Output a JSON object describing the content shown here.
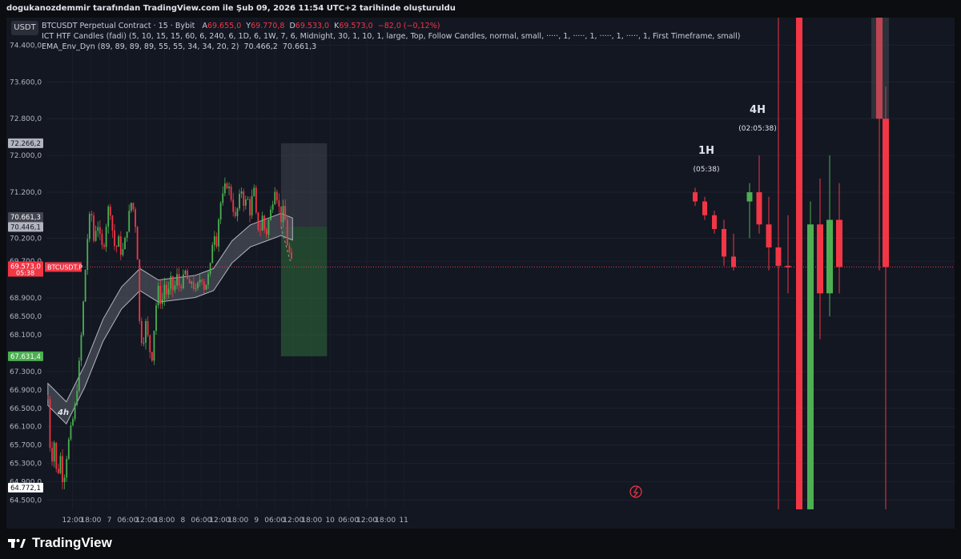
{
  "header": {
    "attribution": "dogukanozdemmir tarafından TradingView.com ile Şub 09, 2026 11:54 UTC+2 tarihinde oluşturuldu"
  },
  "legend": {
    "symbol_button": "USDT",
    "title": "BTCUSDT Perpetual Contract · 15 · Bybit",
    "open_label": "A",
    "open": "69.655,0",
    "high_label": "Y",
    "high": "69.770,8",
    "low_label": "D",
    "low": "69.533,0",
    "close_label": "K",
    "close": "69.573,0",
    "change": "−82,0 (−0,12%)",
    "indicator1": "ICT HTF Candles (fadi) (5, 10, 15, 15, 60, 6, 240, 6, 1D, 6, 1W, 7, 6, Midnight, 30, 1, 10, 1, large, Top, Follow Candles, normal, small, ·····, 1, ·····, 1, ·····, 1, ·····, 1, First Timeframe, small)",
    "indicator2": "EMA_Env_Dyn (89, 89, 89, 89, 55, 55, 34, 34, 20, 2)",
    "indicator2_v1": "70.466,2",
    "indicator2_v2": "70.661,3"
  },
  "annotations": {
    "h1_label": "1H",
    "h1_timer": "(05:38)",
    "h4_label": "4H",
    "h4_timer": "(02:05:38)",
    "small_4h": "4h",
    "symbol_tag": "BTCUSDT.P"
  },
  "price_tags": {
    "t1": "72.266,2",
    "t2": "70.661,3",
    "t3": "70.466,2",
    "t4": "70.446,1",
    "current": "69.573,0",
    "countdown": "05:38",
    "t5": "67.631,4",
    "t6": "64.772,1"
  },
  "colors": {
    "up": "#4caf50",
    "down": "#f23645",
    "background": "#131722",
    "envelope": "#9598a1",
    "risk_box": "#4a4d57",
    "reward_box": "#2f6b3a"
  },
  "chart_data": {
    "type": "candlestick",
    "symbol": "BTCUSDT Perpetual Contract",
    "timeframe": "15",
    "exchange": "Bybit",
    "y_axis": {
      "range": [
        64300,
        75000
      ],
      "tick_labels": [
        "74.400,0",
        "73.600,0",
        "72.800,0",
        "72.000,0",
        "71.200,0",
        "70.200,0",
        "69.700,0",
        "68.900,0",
        "68.500,0",
        "68.100,0",
        "67.300,0",
        "66.900,0",
        "66.500,0",
        "66.100,0",
        "65.700,0",
        "65.300,0",
        "64.900,0",
        "64.500,0"
      ]
    },
    "x_axis": {
      "tick_labels": [
        "12:00",
        "18:00",
        "7",
        "06:00",
        "12:00",
        "18:00",
        "8",
        "06:00",
        "12:00",
        "18:00",
        "9",
        "06:00",
        "12:00",
        "18:00",
        "10",
        "06:00",
        "12:00",
        "18:00",
        "11"
      ]
    },
    "price_path": [
      {
        "t": "06 Feb 04:00",
        "p": 66700
      },
      {
        "t": "06 Feb 05:00",
        "p": 65200
      },
      {
        "t": "06 Feb 06:00",
        "p": 65800
      },
      {
        "t": "06 Feb 07:00",
        "p": 64900
      },
      {
        "t": "06 Feb 08:00",
        "p": 65500
      },
      {
        "t": "06 Feb 09:00",
        "p": 64800
      },
      {
        "t": "06 Feb 10:00",
        "p": 65400
      },
      {
        "t": "06 Feb 11:00",
        "p": 65900
      },
      {
        "t": "06 Feb 12:00",
        "p": 66200
      },
      {
        "t": "06 Feb 13:00",
        "p": 66600
      },
      {
        "t": "06 Feb 14:00",
        "p": 67300
      },
      {
        "t": "06 Feb 15:00",
        "p": 68200
      },
      {
        "t": "06 Feb 16:00",
        "p": 69300
      },
      {
        "t": "06 Feb 17:00",
        "p": 70300
      },
      {
        "t": "06 Feb 18:00",
        "p": 70900
      },
      {
        "t": "06 Feb 19:00",
        "p": 70100
      },
      {
        "t": "06 Feb 20:00",
        "p": 70600
      },
      {
        "t": "06 Feb 21:00",
        "p": 70200
      },
      {
        "t": "06 Feb 22:00",
        "p": 69900
      },
      {
        "t": "06 Feb 23:00",
        "p": 70500
      },
      {
        "t": "07 Feb 00:00",
        "p": 71000
      },
      {
        "t": "07 Feb 01:00",
        "p": 70400
      },
      {
        "t": "07 Feb 02:00",
        "p": 69900
      },
      {
        "t": "07 Feb 03:00",
        "p": 70200
      },
      {
        "t": "07 Feb 04:00",
        "p": 69800
      },
      {
        "t": "07 Feb 05:00",
        "p": 70100
      },
      {
        "t": "07 Feb 06:00",
        "p": 70500
      },
      {
        "t": "07 Feb 07:00",
        "p": 71000
      },
      {
        "t": "07 Feb 08:00",
        "p": 70800
      },
      {
        "t": "07 Feb 09:00",
        "p": 70200
      },
      {
        "t": "07 Feb 10:00",
        "p": 68100
      },
      {
        "t": "07 Feb 11:00",
        "p": 67900
      },
      {
        "t": "07 Feb 12:00",
        "p": 68400
      },
      {
        "t": "07 Feb 13:00",
        "p": 67800
      },
      {
        "t": "07 Feb 14:00",
        "p": 67600
      },
      {
        "t": "07 Feb 15:00",
        "p": 68600
      },
      {
        "t": "07 Feb 16:00",
        "p": 69100
      },
      {
        "t": "07 Feb 17:00",
        "p": 68700
      },
      {
        "t": "07 Feb 18:00",
        "p": 69200
      },
      {
        "t": "07 Feb 19:00",
        "p": 68900
      },
      {
        "t": "07 Feb 20:00",
        "p": 69300
      },
      {
        "t": "07 Feb 21:00",
        "p": 69000
      },
      {
        "t": "07 Feb 22:00",
        "p": 69400
      },
      {
        "t": "07 Feb 23:00",
        "p": 69100
      },
      {
        "t": "08 Feb 00:00",
        "p": 69300
      },
      {
        "t": "08 Feb 01:00",
        "p": 69500
      },
      {
        "t": "08 Feb 02:00",
        "p": 69100
      },
      {
        "t": "08 Feb 03:00",
        "p": 69300
      },
      {
        "t": "08 Feb 04:00",
        "p": 69000
      },
      {
        "t": "08 Feb 05:00",
        "p": 69200
      },
      {
        "t": "08 Feb 06:00",
        "p": 69400
      },
      {
        "t": "08 Feb 07:00",
        "p": 69100
      },
      {
        "t": "08 Feb 08:00",
        "p": 69300
      },
      {
        "t": "08 Feb 09:00",
        "p": 69600
      },
      {
        "t": "08 Feb 10:00",
        "p": 70400
      },
      {
        "t": "08 Feb 11:00",
        "p": 70100
      },
      {
        "t": "08 Feb 12:00",
        "p": 70900
      },
      {
        "t": "08 Feb 13:00",
        "p": 71100
      },
      {
        "t": "08 Feb 14:00",
        "p": 71400
      },
      {
        "t": "08 Feb 15:00",
        "p": 71300
      },
      {
        "t": "08 Feb 16:00",
        "p": 71000
      },
      {
        "t": "08 Feb 17:00",
        "p": 70600
      },
      {
        "t": "08 Feb 18:00",
        "p": 70900
      },
      {
        "t": "08 Feb 19:00",
        "p": 71300
      },
      {
        "t": "08 Feb 20:00",
        "p": 70900
      },
      {
        "t": "08 Feb 21:00",
        "p": 71100
      },
      {
        "t": "08 Feb 22:00",
        "p": 70700
      },
      {
        "t": "08 Feb 23:00",
        "p": 71400
      },
      {
        "t": "09 Feb 00:00",
        "p": 70600
      },
      {
        "t": "09 Feb 01:00",
        "p": 70300
      },
      {
        "t": "09 Feb 02:00",
        "p": 70700
      },
      {
        "t": "09 Feb 03:00",
        "p": 70200
      },
      {
        "t": "09 Feb 04:00",
        "p": 70600
      },
      {
        "t": "09 Feb 05:00",
        "p": 70900
      },
      {
        "t": "09 Feb 06:00",
        "p": 71300
      },
      {
        "t": "09 Feb 07:00",
        "p": 71000
      },
      {
        "t": "09 Feb 08:00",
        "p": 70600
      },
      {
        "t": "09 Feb 09:00",
        "p": 70900
      },
      {
        "t": "09 Feb 10:00",
        "p": 70100
      },
      {
        "t": "09 Feb 11:00",
        "p": 69800
      },
      {
        "t": "09 Feb 11:45",
        "p": 69573
      }
    ],
    "envelope_center": [
      {
        "t": "06 Feb 04:00",
        "p": 66800
      },
      {
        "t": "06 Feb 10:00",
        "p": 66400
      },
      {
        "t": "06 Feb 16:00",
        "p": 67200
      },
      {
        "t": "06 Feb 22:00",
        "p": 68200
      },
      {
        "t": "07 Feb 04:00",
        "p": 68900
      },
      {
        "t": "07 Feb 10:00",
        "p": 69300
      },
      {
        "t": "07 Feb 16:00",
        "p": 69050
      },
      {
        "t": "07 Feb 22:00",
        "p": 69100
      },
      {
        "t": "08 Feb 04:00",
        "p": 69150
      },
      {
        "t": "08 Feb 10:00",
        "p": 69300
      },
      {
        "t": "08 Feb 16:00",
        "p": 69900
      },
      {
        "t": "08 Feb 22:00",
        "p": 70250
      },
      {
        "t": "09 Feb 04:00",
        "p": 70400
      },
      {
        "t": "09 Feb 08:00",
        "p": 70500
      },
      {
        "t": "09 Feb 11:45",
        "p": 70400
      }
    ],
    "envelope_width": 240,
    "position_tool": {
      "entry": 70450,
      "stop": 72266.2,
      "target": 67631.4
    },
    "htf_candles_1h": [
      {
        "o": 71200,
        "h": 71300,
        "l": 70900,
        "c": 71000
      },
      {
        "o": 71000,
        "h": 71100,
        "l": 70600,
        "c": 70700
      },
      {
        "o": 70700,
        "h": 70800,
        "l": 70300,
        "c": 70400
      },
      {
        "o": 70400,
        "h": 70600,
        "l": 69600,
        "c": 69800
      },
      {
        "o": 69800,
        "h": 70300,
        "l": 69500,
        "c": 69573
      }
    ],
    "htf_candles_4h": [
      {
        "o": 71000,
        "h": 71400,
        "l": 70200,
        "c": 71200
      },
      {
        "o": 71200,
        "h": 72000,
        "l": 70300,
        "c": 70500
      },
      {
        "o": 70500,
        "h": 71100,
        "l": 69500,
        "c": 70000
      },
      {
        "o": 70000,
        "h": 76000,
        "l": 63000,
        "c": 69600
      },
      {
        "o": 69600,
        "h": 70700,
        "l": 69000,
        "c": 69573
      }
    ],
    "htf_candles_1d": [
      {
        "o": 75000,
        "h": 78000,
        "l": 60000,
        "c": 62000
      },
      {
        "o": 62000,
        "h": 71000,
        "l": 61000,
        "c": 70500
      },
      {
        "o": 70500,
        "h": 71500,
        "l": 68000,
        "c": 69000
      },
      {
        "o": 69000,
        "h": 72000,
        "l": 68500,
        "c": 70600
      },
      {
        "o": 70600,
        "h": 71400,
        "l": 69000,
        "c": 69573
      }
    ],
    "htf_candles_1w": [
      {
        "o": 78000,
        "h": 79000,
        "l": 69500,
        "c": 72800
      },
      {
        "o": 72800,
        "h": 73500,
        "l": 60000,
        "c": 69573
      }
    ]
  }
}
